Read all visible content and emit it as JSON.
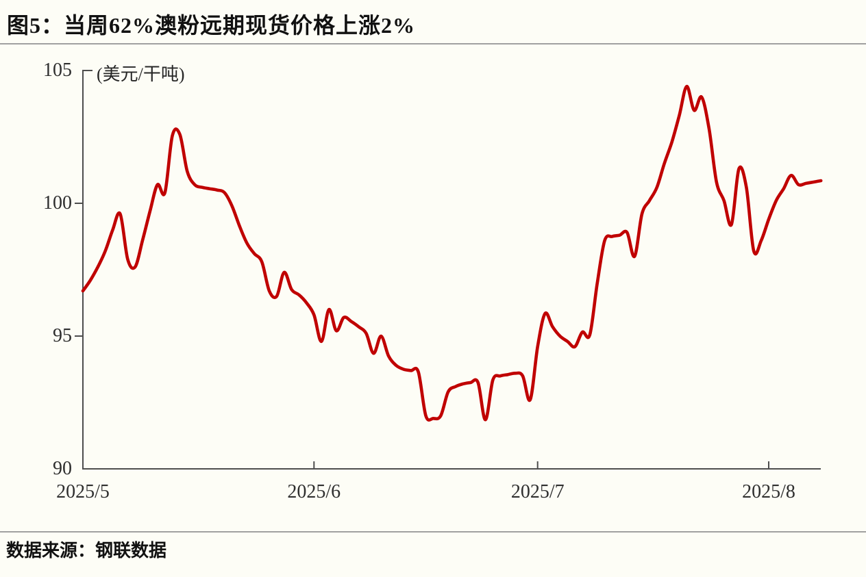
{
  "header": {
    "title": "图5：当周62%澳粉远期现货价格上涨2%"
  },
  "footer": {
    "source_label": "数据来源：钢联数据"
  },
  "chart_data": {
    "type": "line",
    "title": "图5：当周62%澳粉远期现货价格上涨2%",
    "unit_label": "(美元/干吨)",
    "ylabel": "美元/干吨",
    "ylim": [
      90,
      105
    ],
    "y_ticks": [
      105,
      100,
      95,
      90
    ],
    "x_tick_labels": [
      "2025/5",
      "2025/6",
      "2025/7",
      "2025/8"
    ],
    "legend": "none",
    "grid": "off",
    "line_color": "#c00000",
    "axis_color": "#4d4d4d",
    "series_name": "62%澳粉远期现货价格",
    "dates": [
      "2025/5/1",
      "2025/5/2",
      "2025/5/3",
      "2025/5/4",
      "2025/5/5",
      "2025/5/6",
      "2025/5/7",
      "2025/5/8",
      "2025/5/9",
      "2025/5/10",
      "2025/5/11",
      "2025/5/12",
      "2025/5/13",
      "2025/5/14",
      "2025/5/15",
      "2025/5/16",
      "2025/5/17",
      "2025/5/18",
      "2025/5/19",
      "2025/5/20",
      "2025/5/21",
      "2025/5/22",
      "2025/5/23",
      "2025/5/24",
      "2025/5/25",
      "2025/5/26",
      "2025/5/27",
      "2025/5/28",
      "2025/5/29",
      "2025/5/30",
      "2025/5/31",
      "2025/6/1",
      "2025/6/2",
      "2025/6/3",
      "2025/6/4",
      "2025/6/5",
      "2025/6/6",
      "2025/6/7",
      "2025/6/8",
      "2025/6/9",
      "2025/6/10",
      "2025/6/11",
      "2025/6/12",
      "2025/6/13",
      "2025/6/14",
      "2025/6/15",
      "2025/6/16",
      "2025/6/17",
      "2025/6/18",
      "2025/6/19",
      "2025/6/20",
      "2025/6/21",
      "2025/6/22",
      "2025/6/23",
      "2025/6/24",
      "2025/6/25",
      "2025/6/26",
      "2025/6/27",
      "2025/6/28",
      "2025/6/29",
      "2025/6/30",
      "2025/7/1",
      "2025/7/2",
      "2025/7/3",
      "2025/7/4",
      "2025/7/5",
      "2025/7/6",
      "2025/7/7",
      "2025/7/8",
      "2025/7/9",
      "2025/7/10",
      "2025/7/11",
      "2025/7/12",
      "2025/7/13",
      "2025/7/14",
      "2025/7/15",
      "2025/7/16",
      "2025/7/17",
      "2025/7/18",
      "2025/7/19",
      "2025/7/20",
      "2025/7/21",
      "2025/7/22",
      "2025/7/23",
      "2025/7/24",
      "2025/7/25",
      "2025/7/26",
      "2025/7/27",
      "2025/7/28",
      "2025/7/29",
      "2025/7/30",
      "2025/7/31",
      "2025/8/1",
      "2025/8/2",
      "2025/8/3",
      "2025/8/4",
      "2025/8/5",
      "2025/8/6",
      "2025/8/7",
      "2025/8/8"
    ],
    "values": [
      96.7,
      97.1,
      97.6,
      98.2,
      99.0,
      99.6,
      97.9,
      97.6,
      98.6,
      99.7,
      100.7,
      100.4,
      102.55,
      102.6,
      101.2,
      100.7,
      100.6,
      100.55,
      100.5,
      100.4,
      99.9,
      99.15,
      98.5,
      98.1,
      97.8,
      96.7,
      96.5,
      97.4,
      96.75,
      96.55,
      96.25,
      95.8,
      94.8,
      96.0,
      95.2,
      95.7,
      95.55,
      95.35,
      95.1,
      94.35,
      95.0,
      94.25,
      93.9,
      93.75,
      93.7,
      93.65,
      92.0,
      91.9,
      92.0,
      92.9,
      93.1,
      93.2,
      93.25,
      93.25,
      91.85,
      93.35,
      93.5,
      93.55,
      93.6,
      93.5,
      92.6,
      94.6,
      95.85,
      95.35,
      95.0,
      94.8,
      94.6,
      95.15,
      95.05,
      97.0,
      98.6,
      98.75,
      98.8,
      98.9,
      98.0,
      99.6,
      100.1,
      100.6,
      101.5,
      102.3,
      103.3,
      104.4,
      103.5,
      104.0,
      102.8,
      100.8,
      100.1,
      99.2,
      101.3,
      100.6,
      98.2,
      98.6,
      99.4,
      100.1,
      100.55,
      101.05,
      100.7,
      100.75,
      100.8,
      100.85
    ]
  }
}
